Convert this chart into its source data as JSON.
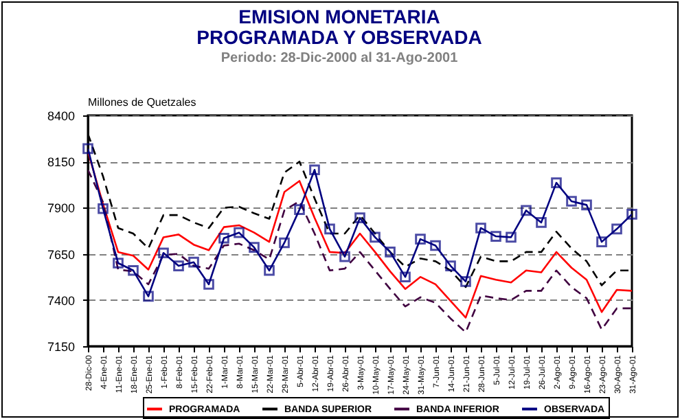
{
  "chart_data": {
    "type": "line",
    "title": [
      "EMISION MONETARIA",
      "PROGRAMADA Y OBSERVADA"
    ],
    "subtitle": "Periodo: 28-Dic-2000 al 31-Ago-2001",
    "ylabel": "Millones de Quetzales",
    "categories": [
      "28-Dic-00",
      "4-Ene-01",
      "11-Ene-01",
      "18-Ene-01",
      "25-Ene-01",
      "1-Feb-01",
      "8-Feb-01",
      "15-Feb-01",
      "22-Feb-01",
      "1-Mar-01",
      "8-Mar-01",
      "15-Mar-01",
      "22-Mar-01",
      "29-Mar-01",
      "5-Abr-01",
      "12-Abr-01",
      "19-Abr-01",
      "26-Abr-01",
      "3-May-01",
      "10-May-01",
      "17-May-01",
      "24-May-01",
      "31-May-01",
      "7-Jun-01",
      "14-Jun-01",
      "21-Jun-01",
      "28-Jun-01",
      "5-Jul-01",
      "12-Jul-01",
      "19-Jul-01",
      "26-Jul-01",
      "2-Ago-01",
      "9-Ago-01",
      "16-Ago-01",
      "23-Ago-01",
      "30-Ago-01",
      "31-Ago-01"
    ],
    "series": [
      {
        "name": "PROGRAMADA",
        "color": "#ff0000",
        "line_style": "solid",
        "marker": "none",
        "values": [
          8205,
          7920,
          7660,
          7640,
          7565,
          7740,
          7755,
          7700,
          7670,
          7795,
          7805,
          7765,
          7715,
          7985,
          8045,
          7845,
          7660,
          7655,
          7760,
          7660,
          7555,
          7460,
          7525,
          7485,
          7395,
          7305,
          7530,
          7510,
          7495,
          7560,
          7550,
          7660,
          7575,
          7510,
          7335,
          7455,
          7450
        ]
      },
      {
        "name": "BANDA SUPERIOR",
        "color": "#000000",
        "line_style": "dashed",
        "marker": "none",
        "values": [
          8300,
          8070,
          7790,
          7760,
          7680,
          7860,
          7860,
          7820,
          7790,
          7900,
          7905,
          7870,
          7840,
          8090,
          8150,
          7950,
          7760,
          7760,
          7860,
          7760,
          7660,
          7580,
          7625,
          7610,
          7560,
          7470,
          7635,
          7610,
          7610,
          7660,
          7660,
          7770,
          7680,
          7610,
          7480,
          7560,
          7560
        ]
      },
      {
        "name": "BANDA INFERIOR",
        "color": "#400040",
        "line_style": "dashed",
        "marker": "none",
        "values": [
          8105,
          7930,
          7565,
          7555,
          7485,
          7645,
          7650,
          7585,
          7570,
          7695,
          7705,
          7670,
          7620,
          7885,
          7935,
          7760,
          7560,
          7570,
          7660,
          7560,
          7460,
          7365,
          7415,
          7385,
          7300,
          7225,
          7425,
          7410,
          7400,
          7450,
          7450,
          7560,
          7470,
          7410,
          7240,
          7355,
          7355
        ]
      },
      {
        "name": "OBSERVADA",
        "color": "#000080",
        "line_style": "solid",
        "marker": "square",
        "values": [
          8220,
          7895,
          7600,
          7560,
          7420,
          7655,
          7585,
          7605,
          7485,
          7735,
          7765,
          7685,
          7560,
          7710,
          7890,
          8105,
          7785,
          7635,
          7845,
          7740,
          7660,
          7525,
          7730,
          7695,
          7585,
          7500,
          7790,
          7745,
          7740,
          7885,
          7820,
          8035,
          7935,
          7915,
          7715,
          7785,
          7865
        ]
      }
    ],
    "ylim": [
      7150,
      8400
    ],
    "yticks": [
      7150,
      7400,
      7650,
      7900,
      8150,
      8400
    ],
    "grid": "y",
    "legend": "bottom"
  }
}
